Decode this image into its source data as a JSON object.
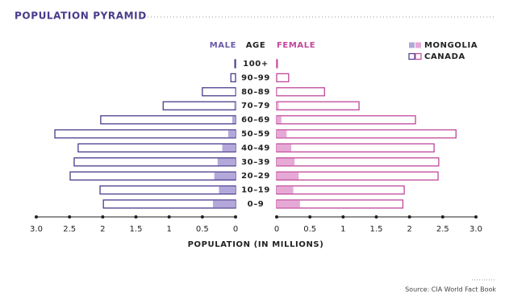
{
  "chart_data": {
    "type": "pyramid",
    "title": "POPULATION PYRAMID",
    "left_label": "MALE",
    "center_label": "AGE",
    "right_label": "FEMALE",
    "x_label": "POPULATION (IN MILLIONS)",
    "source": "Source: CIA World Fact Book",
    "categories": [
      "100+",
      "90–99",
      "80–89",
      "70–79",
      "60–69",
      "50–59",
      "40–49",
      "30–39",
      "20–29",
      "10–19",
      "0–9"
    ],
    "xlim": [
      0,
      3
    ],
    "xticks": [
      {
        "value": 3,
        "label": "3.0"
      },
      2.5,
      2,
      1.5,
      1,
      0.5,
      0
    ],
    "series": [
      {
        "name": "CANADA",
        "style": "outline",
        "male_color": "#4a3a8c",
        "female_color": "#c0479a",
        "male": [
          0.01,
          0.07,
          0.5,
          1.09,
          2.03,
          2.72,
          2.37,
          2.43,
          2.49,
          2.04,
          1.99
        ],
        "female": [
          0.01,
          0.18,
          0.72,
          1.24,
          2.09,
          2.7,
          2.37,
          2.44,
          2.43,
          1.92,
          1.9
        ]
      },
      {
        "name": "MONGOLIA",
        "style": "fill",
        "male_color": "#b3a8d9",
        "female_color": "#e6a9d6",
        "male": [
          0,
          0,
          0.01,
          0.02,
          0.05,
          0.11,
          0.2,
          0.27,
          0.32,
          0.25,
          0.34
        ],
        "female": [
          0,
          0,
          0.01,
          0.03,
          0.07,
          0.15,
          0.22,
          0.27,
          0.33,
          0.25,
          0.35
        ]
      }
    ]
  }
}
